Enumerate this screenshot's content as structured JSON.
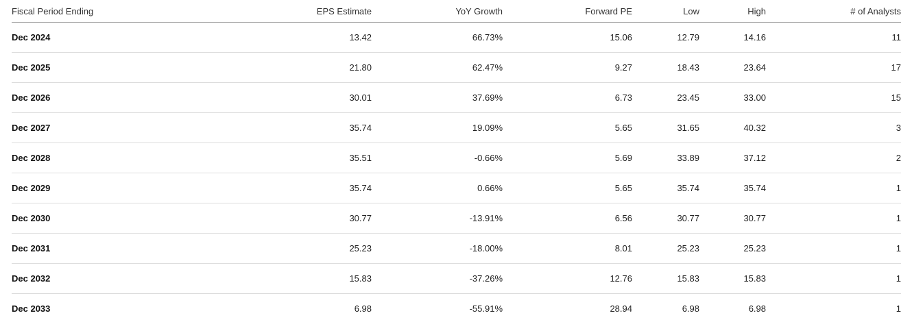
{
  "table": {
    "headers": [
      "Fiscal Period Ending",
      "EPS Estimate",
      "YoY Growth",
      "Forward PE",
      "Low",
      "High",
      "# of Analysts"
    ],
    "rows": [
      [
        "Dec 2024",
        "13.42",
        "66.73%",
        "15.06",
        "12.79",
        "14.16",
        "11"
      ],
      [
        "Dec 2025",
        "21.80",
        "62.47%",
        "9.27",
        "18.43",
        "23.64",
        "17"
      ],
      [
        "Dec 2026",
        "30.01",
        "37.69%",
        "6.73",
        "23.45",
        "33.00",
        "15"
      ],
      [
        "Dec 2027",
        "35.74",
        "19.09%",
        "5.65",
        "31.65",
        "40.32",
        "3"
      ],
      [
        "Dec 2028",
        "35.51",
        "-0.66%",
        "5.69",
        "33.89",
        "37.12",
        "2"
      ],
      [
        "Dec 2029",
        "35.74",
        "0.66%",
        "5.65",
        "35.74",
        "35.74",
        "1"
      ],
      [
        "Dec 2030",
        "30.77",
        "-13.91%",
        "6.56",
        "30.77",
        "30.77",
        "1"
      ],
      [
        "Dec 2031",
        "25.23",
        "-18.00%",
        "8.01",
        "25.23",
        "25.23",
        "1"
      ],
      [
        "Dec 2032",
        "15.83",
        "-37.26%",
        "12.76",
        "15.83",
        "15.83",
        "1"
      ],
      [
        "Dec 2033",
        "6.98",
        "-55.91%",
        "28.94",
        "6.98",
        "6.98",
        "1"
      ]
    ]
  }
}
